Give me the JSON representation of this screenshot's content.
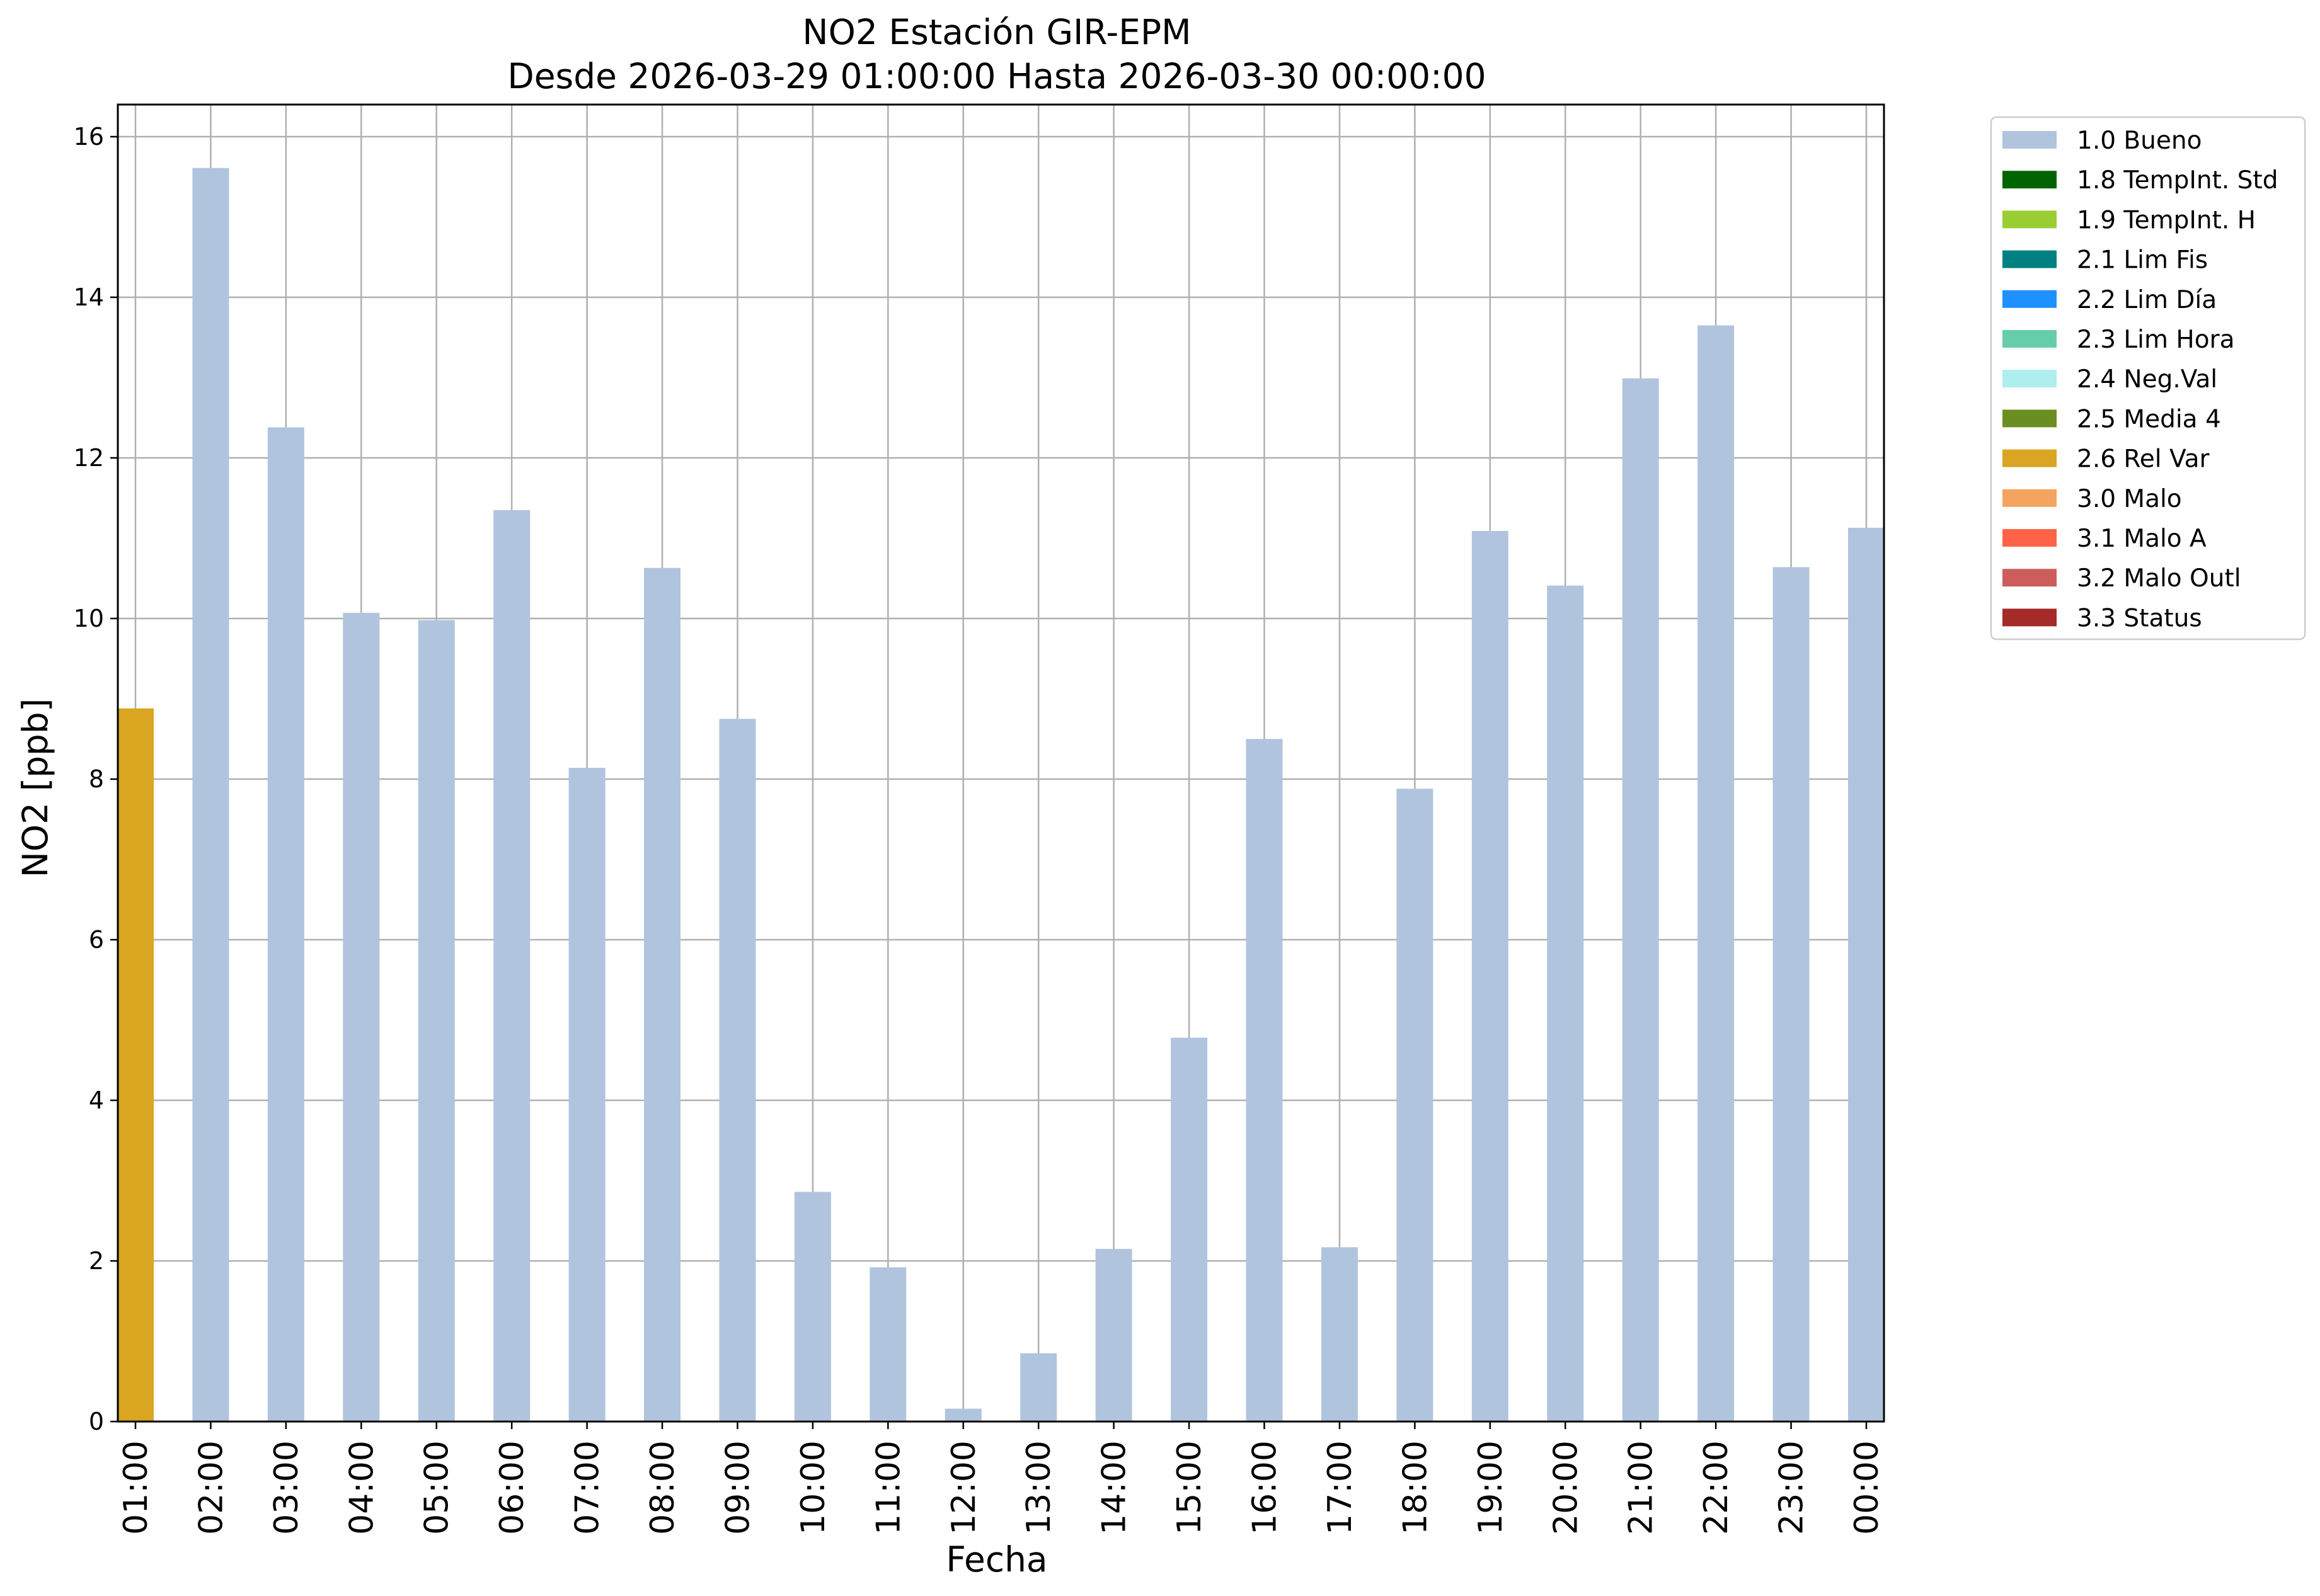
{
  "chart_data": {
    "type": "bar",
    "title": "NO2 Estación GIR-EPM",
    "subtitle": "Desde 2026-03-29 01:00:00 Hasta 2026-03-30 00:00:00",
    "xlabel": "Fecha",
    "ylabel": "NO2 [ppb]",
    "ylim": [
      0,
      16.4
    ],
    "yticks": [
      "0",
      "2",
      "4",
      "6",
      "8",
      "10",
      "12",
      "14",
      "16"
    ],
    "grid": true,
    "legend_position": "outside-right",
    "categories": [
      "01:00",
      "02:00",
      "03:00",
      "04:00",
      "05:00",
      "06:00",
      "07:00",
      "08:00",
      "09:00",
      "10:00",
      "11:00",
      "12:00",
      "13:00",
      "14:00",
      "15:00",
      "16:00",
      "17:00",
      "18:00",
      "19:00",
      "20:00",
      "21:00",
      "22:00",
      "23:00",
      "00:00"
    ],
    "values": [
      8.88,
      15.61,
      12.38,
      10.07,
      9.98,
      11.35,
      8.14,
      10.63,
      8.75,
      2.86,
      1.92,
      0.16,
      0.85,
      2.15,
      4.78,
      8.5,
      2.17,
      7.88,
      11.09,
      10.41,
      12.99,
      13.65,
      10.64,
      11.13
    ],
    "flags": [
      "2.6 Rel Var",
      "1.0 Bueno",
      "1.0 Bueno",
      "1.0 Bueno",
      "1.0 Bueno",
      "1.0 Bueno",
      "1.0 Bueno",
      "1.0 Bueno",
      "1.0 Bueno",
      "1.0 Bueno",
      "1.0 Bueno",
      "1.0 Bueno",
      "1.0 Bueno",
      "1.0 Bueno",
      "1.0 Bueno",
      "1.0 Bueno",
      "1.0 Bueno",
      "1.0 Bueno",
      "1.0 Bueno",
      "1.0 Bueno",
      "1.0 Bueno",
      "1.0 Bueno",
      "1.0 Bueno",
      "1.0 Bueno"
    ],
    "legend": [
      {
        "label": "1.0 Bueno",
        "color": "#b0c4de"
      },
      {
        "label": "1.8 TempInt. Std",
        "color": "#006400"
      },
      {
        "label": "1.9 TempInt. H",
        "color": "#9acd32"
      },
      {
        "label": "2.1 Lim Fis",
        "color": "#008080"
      },
      {
        "label": "2.2 Lim Día",
        "color": "#1e90ff"
      },
      {
        "label": "2.3 Lim Hora",
        "color": "#66cdaa"
      },
      {
        "label": "2.4 Neg.Val",
        "color": "#afeeee"
      },
      {
        "label": "2.5 Media 4",
        "color": "#6b8e23"
      },
      {
        "label": "2.6 Rel Var",
        "color": "#daa520"
      },
      {
        "label": "3.0 Malo",
        "color": "#f4a460"
      },
      {
        "label": "3.1 Malo A",
        "color": "#ff6347"
      },
      {
        "label": "3.2 Malo Outl",
        "color": "#cd5c5c"
      },
      {
        "label": "3.3 Status",
        "color": "#a52a2a"
      }
    ]
  }
}
